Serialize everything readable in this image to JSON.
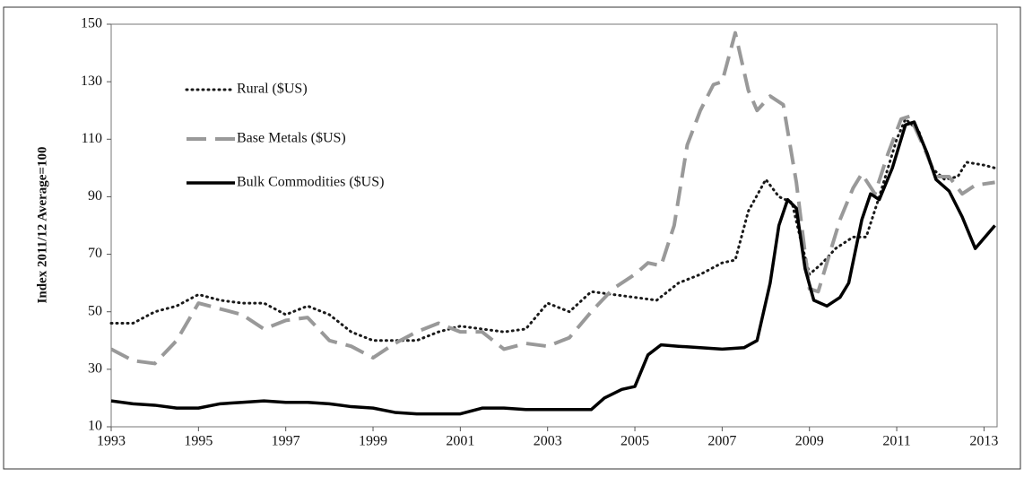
{
  "chart_data": {
    "type": "line",
    "ylabel": "Index 2011/12 Average=100",
    "xlim": [
      1993,
      2013.3
    ],
    "xticks": [
      1993,
      1995,
      1997,
      1999,
      2001,
      2003,
      2005,
      2007,
      2009,
      2011,
      2013
    ],
    "ylim": [
      10,
      150
    ],
    "yticks": [
      10,
      30,
      50,
      70,
      90,
      110,
      130,
      150
    ],
    "legend": "upper left",
    "series": [
      {
        "name": "Rural ($US)",
        "color": "#1a1a1a",
        "style": "dotted",
        "x": [
          1993,
          1993.5,
          1994,
          1994.5,
          1995,
          1995.5,
          1996,
          1996.5,
          1997,
          1997.5,
          1998,
          1998.5,
          1999,
          1999.5,
          2000,
          2000.5,
          2001,
          2001.5,
          2002,
          2002.5,
          2003,
          2003.5,
          2004,
          2004.5,
          2005,
          2005.5,
          2006,
          2006.5,
          2007,
          2007.3,
          2007.6,
          2008,
          2008.3,
          2008.6,
          2008.8,
          2009,
          2009.3,
          2009.6,
          2010,
          2010.3,
          2010.6,
          2011,
          2011.2,
          2011.5,
          2011.8,
          2012.1,
          2012.4,
          2012.6,
          2013,
          2013.25
        ],
        "values": [
          46,
          46,
          50,
          52,
          56,
          54,
          53,
          53,
          49,
          52,
          49,
          43,
          40,
          40,
          40,
          43,
          45,
          44,
          43,
          44,
          53,
          50,
          57,
          56,
          55,
          54,
          60,
          63,
          67,
          68,
          85,
          96,
          90,
          88,
          75,
          63,
          67,
          72,
          76,
          76,
          90,
          110,
          117,
          113,
          100,
          96,
          97,
          102,
          101,
          100
        ]
      },
      {
        "name": "Base Metals ($US)",
        "color": "#999999",
        "style": "dashed",
        "x": [
          1993,
          1993.5,
          1994,
          1994.5,
          1995,
          1995.5,
          1996,
          1996.5,
          1997,
          1997.5,
          1998,
          1998.5,
          1999,
          1999.5,
          2000,
          2000.5,
          2001,
          2001.5,
          2002,
          2002.5,
          2003,
          2003.5,
          2004,
          2004.5,
          2005,
          2005.3,
          2005.6,
          2005.9,
          2006.2,
          2006.5,
          2006.8,
          2007,
          2007.3,
          2007.6,
          2007.8,
          2008.1,
          2008.4,
          2008.7,
          2009,
          2009.2,
          2009.4,
          2009.7,
          2010,
          2010.2,
          2010.5,
          2010.8,
          2011.1,
          2011.3,
          2011.6,
          2011.9,
          2012.2,
          2012.5,
          2012.8,
          2013.25
        ],
        "values": [
          37,
          33,
          32,
          40,
          53,
          51,
          49,
          44,
          47,
          48,
          40,
          38,
          34,
          39,
          43,
          46,
          43,
          43,
          37,
          39,
          38,
          41,
          50,
          58,
          63,
          67,
          66,
          80,
          108,
          120,
          129,
          130,
          147,
          127,
          120,
          125,
          122,
          95,
          58,
          57,
          67,
          82,
          93,
          98,
          91,
          105,
          117,
          118,
          108,
          97,
          97,
          91,
          94,
          95
        ]
      },
      {
        "name": "Bulk Commodities ($US)",
        "color": "#000000",
        "style": "solid",
        "x": [
          1993,
          1993.5,
          1994,
          1994.5,
          1995,
          1995.5,
          1996,
          1996.5,
          1997,
          1997.5,
          1998,
          1998.5,
          1999,
          1999.5,
          2000,
          2000.5,
          2001,
          2001.5,
          2002,
          2002.5,
          2003,
          2003.5,
          2004,
          2004.3,
          2004.7,
          2005,
          2005.3,
          2005.6,
          2006,
          2006.5,
          2007,
          2007.5,
          2007.8,
          2008.1,
          2008.3,
          2008.5,
          2008.7,
          2008.9,
          2009.1,
          2009.4,
          2009.7,
          2009.9,
          2010.2,
          2010.4,
          2010.6,
          2010.9,
          2011.2,
          2011.4,
          2011.7,
          2011.9,
          2012.2,
          2012.5,
          2012.8,
          2013.25
        ],
        "values": [
          19,
          18,
          17.5,
          16.5,
          16.5,
          18,
          18.5,
          19,
          18.5,
          18.5,
          18,
          17,
          16.5,
          15,
          14.5,
          14.5,
          14.5,
          16.5,
          16.5,
          16,
          16,
          16,
          16,
          20,
          23,
          24,
          35,
          38.5,
          38,
          37.5,
          37,
          37.5,
          40,
          60,
          80,
          89,
          86,
          65,
          54,
          52,
          55,
          60,
          82,
          91,
          89,
          100,
          115,
          116,
          105,
          96,
          92,
          83,
          72,
          80
        ]
      }
    ]
  }
}
